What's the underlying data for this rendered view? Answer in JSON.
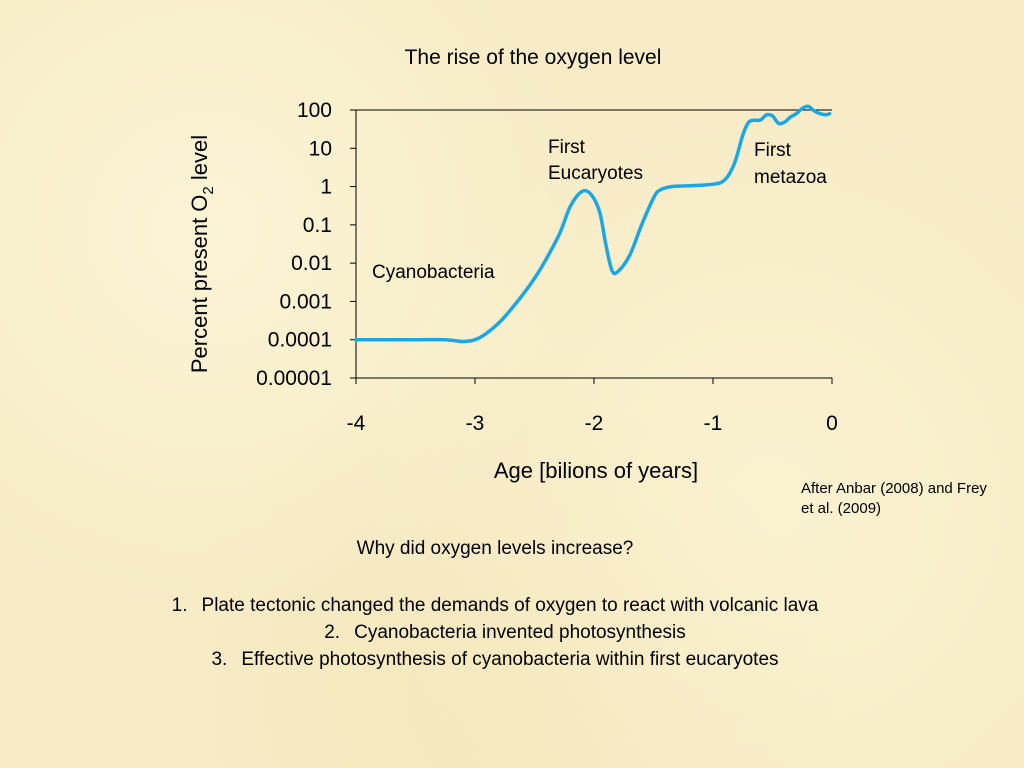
{
  "chart_data": {
    "type": "line",
    "title": "The rise of the oxygen level",
    "xlabel": "Age [bilions of years]",
    "ylabel_main": "Percent present O",
    "ylabel_sub": "2",
    "ylabel_end": " level",
    "x_ticks": [
      "-4",
      "-3",
      "-2",
      "-1",
      "0"
    ],
    "x_tick_values": [
      -4,
      -3,
      -2,
      -1,
      0
    ],
    "y_ticks": [
      "100",
      "10",
      "1",
      "0.1",
      "0.01",
      "0.001",
      "0.0001",
      "0.00001"
    ],
    "y_tick_values": [
      100,
      10,
      1,
      0.1,
      0.01,
      0.001,
      0.0001,
      1e-05
    ],
    "xlim": [
      -4,
      0
    ],
    "ylim": [
      1e-05,
      100
    ],
    "yscale": "log",
    "grid": false,
    "line_color": "#1ba7e6",
    "series": [
      {
        "x": [
          -4.0,
          -3.5,
          -3.25,
          -3.1,
          -3.0,
          -2.9,
          -2.75,
          -2.5,
          -2.3,
          -2.2,
          -2.1,
          -2.02,
          -1.95,
          -1.9,
          -1.85,
          -1.8,
          -1.7,
          -1.6,
          -1.5,
          -1.45,
          -1.35,
          -1.2,
          -1.0,
          -0.9,
          -0.82,
          -0.75,
          -0.7,
          -0.65,
          -0.6,
          -0.55,
          -0.5,
          -0.45,
          -0.4,
          -0.35,
          -0.3,
          -0.25,
          -0.2,
          -0.15,
          -0.1,
          -0.05,
          -0.02
        ],
        "y": [
          0.0001,
          0.0001,
          0.0001,
          9e-05,
          0.0001,
          0.00015,
          0.0004,
          0.004,
          0.05,
          0.3,
          0.75,
          0.6,
          0.2,
          0.03,
          0.0065,
          0.006,
          0.016,
          0.1,
          0.5,
          0.8,
          1.0,
          1.05,
          1.15,
          1.5,
          4,
          22,
          48,
          54,
          55,
          75,
          70,
          45,
          48,
          65,
          80,
          110,
          125,
          95,
          80,
          75,
          80
        ]
      }
    ],
    "annotations": [
      "Cyanobacteria",
      "First Eucaryotes",
      "First metazoa"
    ]
  },
  "credit": "After Anbar (2008) and Frey et al. (2009)",
  "question": "Why did oxygen levels increase?",
  "reasons": [
    {
      "num": "1.",
      "text": "Plate tectonic changed the demands of oxygen to react with volcanic lava"
    },
    {
      "num": "2.",
      "text": "Cyanobacteria invented photosynthesis"
    },
    {
      "num": "3.",
      "text": "Effective photosynthesis of cyanobacteria within first eucaryotes"
    }
  ]
}
